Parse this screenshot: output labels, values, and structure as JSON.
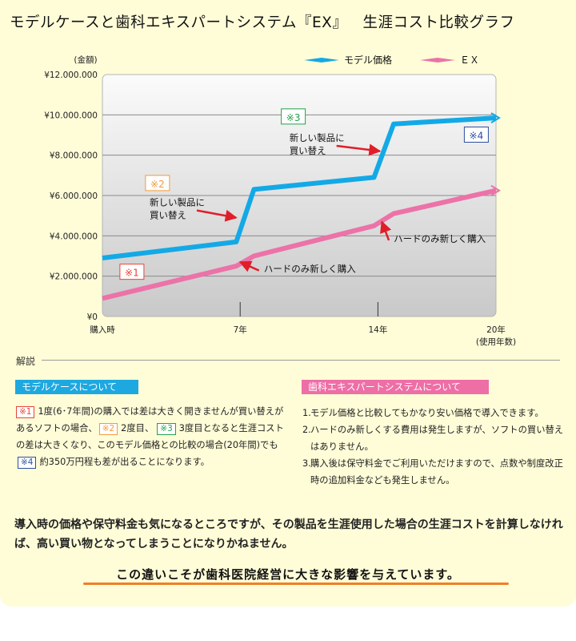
{
  "title": "モデルケースと歯科エキスパートシステム『EX』   生涯コスト比較グラフ",
  "chart_data": {
    "type": "line",
    "ylabel": "(金額)",
    "xlabel": "(使用年数)",
    "ylim": [
      0,
      12000000
    ],
    "xlim": [
      0,
      20
    ],
    "y_ticks": [
      {
        "value": 0,
        "label": "¥0"
      },
      {
        "value": 2000000,
        "label": "¥2.000.000"
      },
      {
        "value": 4000000,
        "label": "¥4.000.000"
      },
      {
        "value": 6000000,
        "label": "¥6.000.000"
      },
      {
        "value": 8000000,
        "label": "¥8.000.000"
      },
      {
        "value": 10000000,
        "label": "¥10.000.000"
      },
      {
        "value": 12000000,
        "label": "¥12.000.000"
      }
    ],
    "x_ticks": [
      {
        "value": 0,
        "label": "購入時"
      },
      {
        "value": 7,
        "label": "7年"
      },
      {
        "value": 14,
        "label": "14年"
      },
      {
        "value": 20,
        "label": "20年"
      }
    ],
    "legend_position": "top-right",
    "series": [
      {
        "name": "モデル価格",
        "color": "#13a9e6",
        "points": [
          [
            0,
            2900000
          ],
          [
            6.8,
            3700000
          ],
          [
            7.7,
            6300000
          ],
          [
            13.8,
            6900000
          ],
          [
            14.8,
            9550000
          ],
          [
            20,
            9850000
          ]
        ]
      },
      {
        "name": "ＥＸ",
        "color": "#ec72a8",
        "points": [
          [
            0,
            900000
          ],
          [
            6.8,
            2500000
          ],
          [
            7.7,
            3000000
          ],
          [
            13.8,
            4500000
          ],
          [
            14.8,
            5100000
          ],
          [
            20,
            6250000
          ]
        ]
      }
    ],
    "annotations": [
      {
        "text": "※1",
        "color": "#e8443a",
        "x": 1.5,
        "y": 2200000
      },
      {
        "text": "※2",
        "color": "#f39a3c",
        "x": 2.8,
        "y": 6600000
      },
      {
        "text": "※3",
        "color": "#21a24b",
        "x": 9.7,
        "y": 9900000
      },
      {
        "text": "※4",
        "color": "#2b4f9e",
        "x": 19,
        "y": 9000000
      },
      {
        "text": "新しい製品に\n買い替え",
        "x": 2.4,
        "y": 5500000,
        "arrow_to": [
          6.8,
          4900000
        ]
      },
      {
        "text": "新しい製品に\n買い替え",
        "x": 9.5,
        "y": 8700000,
        "arrow_to": [
          14.1,
          8200000
        ]
      },
      {
        "text": "ハードのみ新しく購入",
        "x": 8.2,
        "y": 2200000,
        "arrow_to": [
          7.0,
          2700000
        ]
      },
      {
        "text": "ハードのみ新しく購入",
        "x": 14.8,
        "y": 3700000,
        "arrow_to": [
          14.2,
          4700000
        ]
      }
    ]
  },
  "section_label": "解説",
  "model_case": {
    "header": "モデルケースについて",
    "tags": [
      "※1",
      "※2",
      "※3",
      "※4"
    ],
    "parts": [
      "1度(6･7年間)の購入では差は大きく開きませんが買い替えがあるソフトの場合、",
      "2度目、",
      "3度目となると生涯コストの差は大きくなり、このモデル価格との比較の場合(20年間)でも",
      "約350万円程も差が出ることになります。"
    ]
  },
  "ex_system": {
    "header": "歯科エキスパートシステムについて",
    "items": [
      {
        "num": "1.",
        "text": "モデル価格と比較してもかなり安い価格で導入できます。"
      },
      {
        "num": "2.",
        "text": "ハードのみ新しくする費用は発生しますが、ソフトの買い替えはありません。"
      },
      {
        "num": "3.",
        "text": "購入後は保守料金でご利用いただけますので、点数や制度改正時の追加料金なども発生しません。"
      }
    ]
  },
  "bottom_text": "導入時の価格や保守料金も気になるところですが、その製品を生涯使用した場合の生涯コストを計算しなければ、高い買い物となってしまうことになりかねません。",
  "closing": "この違いこそが歯科医院経営に大きな影響を与えています。"
}
